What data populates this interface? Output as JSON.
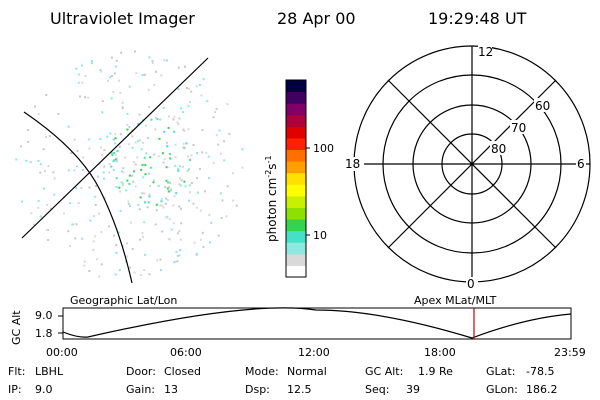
{
  "header": {
    "instrument": "Ultraviolet Imager",
    "date": "28 Apr 00",
    "time": "19:29:48 UT"
  },
  "colorbar": {
    "label_unit": "photon cm",
    "label_exp1": "-2",
    "label_mid": "s",
    "label_exp2": "-1",
    "ticks": [
      "100",
      "10"
    ],
    "scale": "log",
    "colors": [
      "#ffffff",
      "#d9d9d9",
      "#8ee8e0",
      "#44e0c8",
      "#33d44e",
      "#8ee000",
      "#c8f000",
      "#ffff00",
      "#ffe000",
      "#ffa000",
      "#ff7000",
      "#ff2000",
      "#e00000",
      "#b0003a",
      "#800068",
      "#400060",
      "#000040"
    ]
  },
  "polar_plot": {
    "hour_labels": {
      "top": "12",
      "left": "18",
      "right": "6",
      "bottom": "0"
    },
    "lat_labels": [
      "60",
      "70",
      "80"
    ],
    "accent": "#000000"
  },
  "timeline": {
    "left_title": "Geographic Lat/Lon",
    "right_title": "Apex MLat/MLT",
    "y_label": "GC Alt",
    "y_ticks": [
      "9.0",
      "1.8"
    ],
    "x_ticks": [
      "00:00",
      "06:00",
      "12:00",
      "18:00",
      "23:59"
    ],
    "marker_time": "19:29:48",
    "marker_color": "#cc0000"
  },
  "info": {
    "flt_label": "Flt:",
    "flt_value": "LBHL",
    "ip_label": "IP:",
    "ip_value": "9.0",
    "door_label": "Door:",
    "door_value": "Closed",
    "gain_label": "Gain:",
    "gain_value": "13",
    "mode_label": "Mode:",
    "mode_value": "Normal",
    "dsp_label": "Dsp:",
    "dsp_value": "12.5",
    "gcalt_label": "GC Alt:",
    "gcalt_value": "1.9 Re",
    "seq_label": "Seq:",
    "seq_value": "39",
    "glat_label": "GLat:",
    "glat_value": "-78.5",
    "glon_label": "GLon:",
    "glon_value": "186.2"
  }
}
